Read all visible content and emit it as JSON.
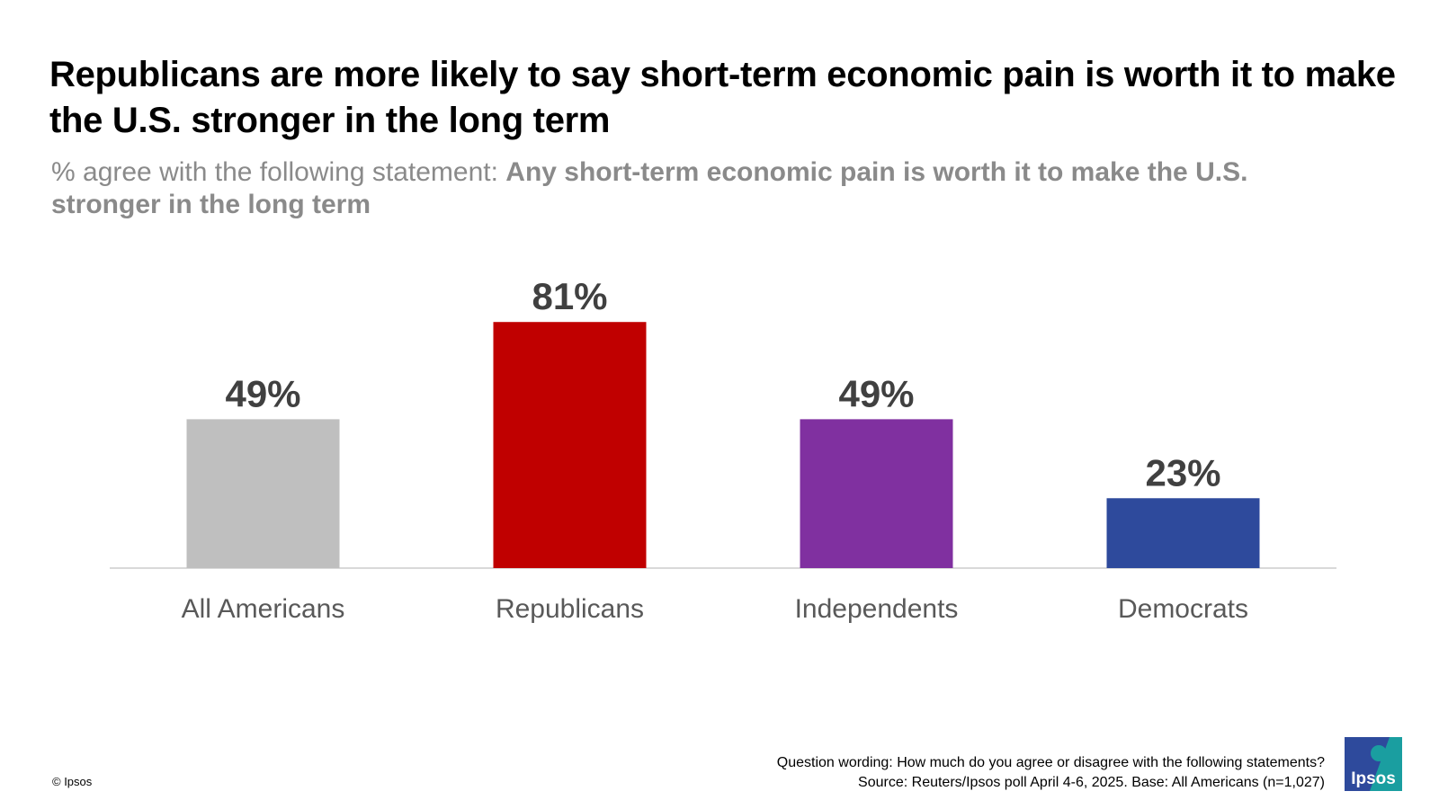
{
  "title": "Republicans are more likely to say short-term economic pain is worth it to make the U.S. stronger in the long term",
  "subtitle_prefix": "% agree with the following statement:",
  "subtitle_statement": "Any short-term economic pain is worth it to make the U.S. stronger in the long term",
  "footer": {
    "copyright": "© Ipsos",
    "question_wording": "Question wording: How much do you agree or disagree with the following statements?",
    "source": "Source: Reuters/Ipsos poll April 4-6, 2025. Base: All Americans (n=1,027)"
  },
  "logo_text": "Ipsos",
  "chart_data": {
    "type": "bar",
    "categories": [
      "All Americans",
      "Republicans",
      "Independents",
      "Democrats"
    ],
    "values": [
      49,
      81,
      49,
      23
    ],
    "value_labels": [
      "49%",
      "81%",
      "49%",
      "23%"
    ],
    "colors": [
      "#bfbfbf",
      "#c00000",
      "#8030a0",
      "#2e4a9c"
    ],
    "ylim": [
      0,
      100
    ],
    "grid": false,
    "legend": "none"
  }
}
